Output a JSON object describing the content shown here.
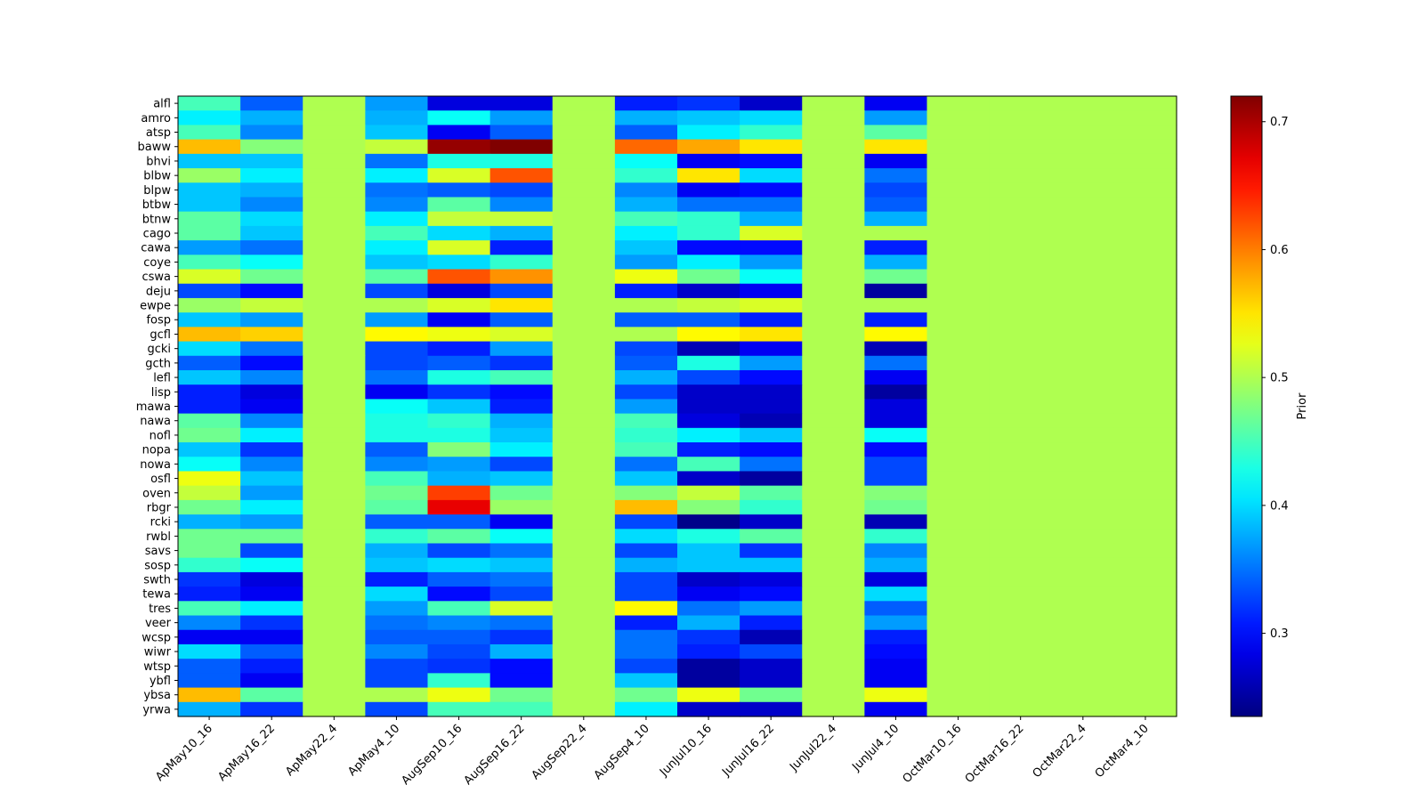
{
  "chart_data": {
    "type": "heatmap",
    "title": "",
    "xlabel": "",
    "ylabel": "",
    "colormap": "jet",
    "colorbar": {
      "label": "Prior",
      "vmin": 0.235,
      "vmax": 0.72,
      "ticks": [
        0.3,
        0.4,
        0.5,
        0.6,
        0.7
      ],
      "tick_labels": [
        "0.3",
        "0.4",
        "0.5",
        "0.6",
        "0.7"
      ]
    },
    "x_categories": [
      "ApMay10_16",
      "ApMay16_22",
      "ApMay22_4",
      "ApMay4_10",
      "AugSep10_16",
      "AugSep16_22",
      "AugSep22_4",
      "AugSep4_10",
      "JunJul10_16",
      "JunJul16_22",
      "JunJul22_4",
      "JunJul4_10",
      "OctMar10_16",
      "OctMar16_22",
      "OctMar22_4",
      "OctMar4_10"
    ],
    "y_categories": [
      "alfl",
      "amro",
      "atsp",
      "baww",
      "bhvi",
      "blbw",
      "blpw",
      "btbw",
      "btnw",
      "cago",
      "cawa",
      "coye",
      "cswa",
      "deju",
      "ewpe",
      "fosp",
      "gcfl",
      "gcki",
      "gcth",
      "lefl",
      "lisp",
      "mawa",
      "nawa",
      "nofl",
      "nopa",
      "nowa",
      "osfl",
      "oven",
      "rbgr",
      "rcki",
      "rwbl",
      "savs",
      "sosp",
      "swth",
      "tewa",
      "tres",
      "veer",
      "wcsp",
      "wiwr",
      "wtsp",
      "ybfl",
      "ybsa",
      "yrwa"
    ],
    "values": [
      [
        0.45,
        0.34,
        0.5,
        0.37,
        0.28,
        0.28,
        0.5,
        0.31,
        0.32,
        0.27,
        0.5,
        0.29,
        0.5,
        0.5,
        0.5,
        0.5
      ],
      [
        0.41,
        0.38,
        0.5,
        0.38,
        0.42,
        0.37,
        0.5,
        0.38,
        0.39,
        0.4,
        0.5,
        0.37,
        0.5,
        0.5,
        0.5,
        0.5
      ],
      [
        0.45,
        0.36,
        0.5,
        0.39,
        0.29,
        0.34,
        0.5,
        0.34,
        0.41,
        0.44,
        0.5,
        0.46,
        0.5,
        0.5,
        0.5,
        0.5
      ],
      [
        0.57,
        0.48,
        0.5,
        0.51,
        0.71,
        0.72,
        0.5,
        0.61,
        0.58,
        0.55,
        0.5,
        0.55,
        0.5,
        0.5,
        0.5,
        0.5
      ],
      [
        0.39,
        0.39,
        0.5,
        0.35,
        0.43,
        0.43,
        0.5,
        0.42,
        0.29,
        0.3,
        0.5,
        0.29,
        0.5,
        0.5,
        0.5,
        0.5
      ],
      [
        0.49,
        0.41,
        0.5,
        0.41,
        0.52,
        0.62,
        0.5,
        0.44,
        0.55,
        0.4,
        0.5,
        0.35,
        0.5,
        0.5,
        0.5,
        0.5
      ],
      [
        0.39,
        0.38,
        0.5,
        0.35,
        0.34,
        0.33,
        0.5,
        0.36,
        0.29,
        0.3,
        0.5,
        0.33,
        0.5,
        0.5,
        0.5,
        0.5
      ],
      [
        0.39,
        0.36,
        0.5,
        0.36,
        0.46,
        0.36,
        0.5,
        0.38,
        0.35,
        0.35,
        0.5,
        0.34,
        0.5,
        0.5,
        0.5,
        0.5
      ],
      [
        0.46,
        0.4,
        0.5,
        0.41,
        0.51,
        0.51,
        0.5,
        0.45,
        0.44,
        0.38,
        0.5,
        0.38,
        0.5,
        0.5,
        0.5,
        0.5
      ],
      [
        0.46,
        0.39,
        0.5,
        0.45,
        0.4,
        0.38,
        0.5,
        0.41,
        0.44,
        0.52,
        0.5,
        0.5,
        0.5,
        0.5,
        0.5,
        0.5
      ],
      [
        0.37,
        0.35,
        0.5,
        0.41,
        0.52,
        0.31,
        0.5,
        0.39,
        0.3,
        0.3,
        0.5,
        0.31,
        0.5,
        0.5,
        0.5,
        0.5
      ],
      [
        0.45,
        0.42,
        0.5,
        0.39,
        0.4,
        0.44,
        0.5,
        0.37,
        0.41,
        0.37,
        0.5,
        0.38,
        0.5,
        0.5,
        0.5,
        0.5
      ],
      [
        0.52,
        0.47,
        0.5,
        0.46,
        0.62,
        0.59,
        0.5,
        0.53,
        0.47,
        0.42,
        0.5,
        0.47,
        0.5,
        0.5,
        0.5,
        0.5
      ],
      [
        0.33,
        0.3,
        0.5,
        0.33,
        0.28,
        0.33,
        0.5,
        0.31,
        0.27,
        0.29,
        0.5,
        0.25,
        0.5,
        0.5,
        0.5,
        0.5
      ],
      [
        0.49,
        0.51,
        0.5,
        0.5,
        0.52,
        0.55,
        0.5,
        0.5,
        0.51,
        0.52,
        0.5,
        0.5,
        0.5,
        0.5,
        0.5,
        0.5
      ],
      [
        0.39,
        0.37,
        0.5,
        0.37,
        0.29,
        0.34,
        0.5,
        0.34,
        0.34,
        0.31,
        0.5,
        0.31,
        0.5,
        0.5,
        0.5,
        0.5
      ],
      [
        0.57,
        0.56,
        0.5,
        0.54,
        0.53,
        0.52,
        0.5,
        0.5,
        0.54,
        0.55,
        0.5,
        0.54,
        0.5,
        0.5,
        0.5,
        0.5
      ],
      [
        0.4,
        0.35,
        0.5,
        0.33,
        0.31,
        0.37,
        0.5,
        0.33,
        0.26,
        0.29,
        0.5,
        0.26,
        0.5,
        0.5,
        0.5,
        0.5
      ],
      [
        0.34,
        0.3,
        0.5,
        0.33,
        0.34,
        0.32,
        0.5,
        0.34,
        0.43,
        0.37,
        0.5,
        0.35,
        0.5,
        0.5,
        0.5,
        0.5
      ],
      [
        0.39,
        0.36,
        0.5,
        0.35,
        0.43,
        0.45,
        0.5,
        0.38,
        0.33,
        0.3,
        0.5,
        0.29,
        0.5,
        0.5,
        0.5,
        0.5
      ],
      [
        0.31,
        0.28,
        0.5,
        0.29,
        0.32,
        0.3,
        0.5,
        0.33,
        0.27,
        0.27,
        0.5,
        0.25,
        0.5,
        0.5,
        0.5,
        0.5
      ],
      [
        0.31,
        0.29,
        0.5,
        0.42,
        0.39,
        0.31,
        0.5,
        0.37,
        0.27,
        0.27,
        0.5,
        0.28,
        0.5,
        0.5,
        0.5,
        0.5
      ],
      [
        0.46,
        0.36,
        0.5,
        0.43,
        0.44,
        0.38,
        0.5,
        0.45,
        0.28,
        0.26,
        0.5,
        0.28,
        0.5,
        0.5,
        0.5,
        0.5
      ],
      [
        0.47,
        0.41,
        0.5,
        0.43,
        0.43,
        0.39,
        0.5,
        0.44,
        0.41,
        0.39,
        0.5,
        0.42,
        0.5,
        0.5,
        0.5,
        0.5
      ],
      [
        0.39,
        0.32,
        0.5,
        0.34,
        0.48,
        0.41,
        0.5,
        0.45,
        0.31,
        0.3,
        0.5,
        0.3,
        0.5,
        0.5,
        0.5,
        0.5
      ],
      [
        0.42,
        0.36,
        0.5,
        0.36,
        0.37,
        0.33,
        0.5,
        0.35,
        0.45,
        0.35,
        0.5,
        0.33,
        0.5,
        0.5,
        0.5,
        0.5
      ],
      [
        0.53,
        0.39,
        0.5,
        0.45,
        0.38,
        0.39,
        0.5,
        0.39,
        0.27,
        0.25,
        0.5,
        0.33,
        0.5,
        0.5,
        0.5,
        0.5
      ],
      [
        0.51,
        0.37,
        0.5,
        0.47,
        0.63,
        0.47,
        0.5,
        0.48,
        0.51,
        0.46,
        0.5,
        0.48,
        0.5,
        0.5,
        0.5,
        0.5
      ],
      [
        0.47,
        0.41,
        0.5,
        0.46,
        0.67,
        0.49,
        0.5,
        0.57,
        0.48,
        0.44,
        0.5,
        0.47,
        0.5,
        0.5,
        0.5,
        0.5
      ],
      [
        0.38,
        0.37,
        0.5,
        0.34,
        0.34,
        0.29,
        0.5,
        0.33,
        0.24,
        0.27,
        0.5,
        0.26,
        0.5,
        0.5,
        0.5,
        0.5
      ],
      [
        0.47,
        0.47,
        0.5,
        0.44,
        0.46,
        0.42,
        0.5,
        0.4,
        0.43,
        0.46,
        0.5,
        0.44,
        0.5,
        0.5,
        0.5,
        0.5
      ],
      [
        0.47,
        0.33,
        0.5,
        0.38,
        0.33,
        0.35,
        0.5,
        0.33,
        0.39,
        0.32,
        0.5,
        0.36,
        0.5,
        0.5,
        0.5,
        0.5
      ],
      [
        0.44,
        0.42,
        0.5,
        0.39,
        0.4,
        0.39,
        0.5,
        0.38,
        0.39,
        0.39,
        0.5,
        0.38,
        0.5,
        0.5,
        0.5,
        0.5
      ],
      [
        0.32,
        0.28,
        0.5,
        0.31,
        0.34,
        0.35,
        0.5,
        0.33,
        0.27,
        0.28,
        0.5,
        0.28,
        0.5,
        0.5,
        0.5,
        0.5
      ],
      [
        0.31,
        0.29,
        0.5,
        0.4,
        0.3,
        0.33,
        0.5,
        0.33,
        0.29,
        0.3,
        0.5,
        0.4,
        0.5,
        0.5,
        0.5,
        0.5
      ],
      [
        0.45,
        0.41,
        0.5,
        0.37,
        0.45,
        0.52,
        0.5,
        0.54,
        0.35,
        0.37,
        0.5,
        0.34,
        0.5,
        0.5,
        0.5,
        0.5
      ],
      [
        0.36,
        0.32,
        0.5,
        0.35,
        0.36,
        0.35,
        0.5,
        0.31,
        0.38,
        0.31,
        0.5,
        0.37,
        0.5,
        0.5,
        0.5,
        0.5
      ],
      [
        0.29,
        0.29,
        0.5,
        0.34,
        0.34,
        0.32,
        0.5,
        0.35,
        0.32,
        0.26,
        0.5,
        0.31,
        0.5,
        0.5,
        0.5,
        0.5
      ],
      [
        0.4,
        0.34,
        0.5,
        0.36,
        0.33,
        0.38,
        0.5,
        0.35,
        0.31,
        0.33,
        0.5,
        0.3,
        0.5,
        0.5,
        0.5,
        0.5
      ],
      [
        0.34,
        0.31,
        0.5,
        0.33,
        0.32,
        0.3,
        0.5,
        0.33,
        0.25,
        0.27,
        0.5,
        0.29,
        0.5,
        0.5,
        0.5,
        0.5
      ],
      [
        0.34,
        0.29,
        0.5,
        0.33,
        0.44,
        0.3,
        0.5,
        0.39,
        0.25,
        0.27,
        0.5,
        0.29,
        0.5,
        0.5,
        0.5,
        0.5
      ],
      [
        0.57,
        0.46,
        0.5,
        0.5,
        0.53,
        0.47,
        0.5,
        0.47,
        0.53,
        0.47,
        0.5,
        0.53,
        0.5,
        0.5,
        0.5,
        0.5
      ],
      [
        0.38,
        0.32,
        0.5,
        0.33,
        0.45,
        0.45,
        0.5,
        0.41,
        0.27,
        0.27,
        0.5,
        0.29,
        0.5,
        0.5,
        0.5,
        0.5
      ]
    ]
  }
}
